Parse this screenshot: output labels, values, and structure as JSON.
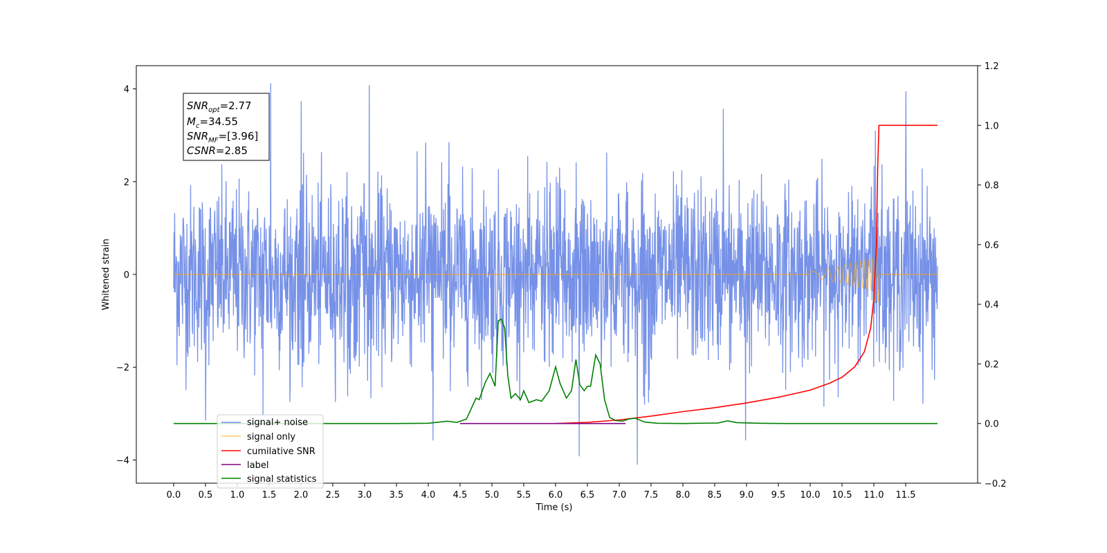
{
  "chart_data": {
    "type": "line",
    "xlabel": "Time (s)",
    "ylabel": "Whitened strain",
    "xlim": [
      -0.6,
      12.3
    ],
    "ylim_left": [
      -4.5,
      4.5
    ],
    "ylim_right": [
      -0.2,
      1.2
    ],
    "x_ticks": [
      "0.0",
      "0.5",
      "1.0",
      "1.5",
      "2.0",
      "2.5",
      "3.0",
      "3.5",
      "4.0",
      "4.5",
      "5.0",
      "5.5",
      "6.0",
      "6.5",
      "7.0",
      "7.5",
      "8.0",
      "8.5",
      "9.0",
      "9.5",
      "10.0",
      "10.5",
      "11.0",
      "11.5"
    ],
    "y_ticks_left": [
      "-4",
      "-2",
      "0",
      "2",
      "4"
    ],
    "y_ticks_right": [
      "-0.2",
      "0.0",
      "0.2",
      "0.4",
      "0.6",
      "0.8",
      "1.0",
      "1.2"
    ],
    "grid": false,
    "legend_position": "lower-left",
    "annotation": {
      "snr_opt": {
        "base": "SNR",
        "sub": "opt",
        "value": "=2.77"
      },
      "mc": {
        "base": "M",
        "sub": "c",
        "value": "=34.55"
      },
      "snr_mf": {
        "base": "SNR",
        "sub": "MF",
        "value": "=[3.96]"
      },
      "csnr": {
        "base": "CSNR",
        "value": "=2.85"
      }
    },
    "series": [
      {
        "name": "signal+ noise",
        "axis": "left",
        "color": "#6f8be6",
        "description_noise_envelope": [
          -2.6,
          2.6
        ],
        "outliers": [
          [
            1.52,
            4.12
          ],
          [
            3.07,
            4.08
          ],
          [
            2.0,
            3.73
          ],
          [
            11.5,
            3.95
          ],
          [
            8.63,
            3.57
          ],
          [
            11.02,
            3.1
          ],
          [
            4.07,
            -3.58
          ],
          [
            6.37,
            -3.92
          ],
          [
            7.28,
            -4.1
          ],
          [
            8.98,
            -3.58
          ],
          [
            0.5,
            -3.15
          ],
          [
            1.4,
            -3.05
          ]
        ]
      },
      {
        "name": "signal only",
        "axis": "left",
        "color": "#ffa500",
        "points": [
          [
            0,
            0
          ],
          [
            10.0,
            0
          ],
          [
            10.5,
            0.05
          ],
          [
            11.0,
            0.4
          ],
          [
            11.07,
            -0.6
          ],
          [
            11.1,
            0
          ],
          [
            12.0,
            0
          ]
        ]
      },
      {
        "name": "cumilative SNR",
        "axis": "right",
        "color": "#ff0000",
        "points": [
          [
            6.0,
            0.0
          ],
          [
            6.5,
            0.004
          ],
          [
            7.0,
            0.012
          ],
          [
            7.5,
            0.025
          ],
          [
            8.0,
            0.04
          ],
          [
            8.5,
            0.053
          ],
          [
            9.0,
            0.069
          ],
          [
            9.5,
            0.088
          ],
          [
            10.0,
            0.112
          ],
          [
            10.3,
            0.135
          ],
          [
            10.5,
            0.155
          ],
          [
            10.7,
            0.19
          ],
          [
            10.85,
            0.24
          ],
          [
            10.95,
            0.32
          ],
          [
            11.0,
            0.42
          ],
          [
            11.04,
            0.6
          ],
          [
            11.06,
            0.85
          ],
          [
            11.08,
            1.0
          ],
          [
            12.0,
            1.0
          ]
        ]
      },
      {
        "name": "label",
        "axis": "right",
        "color": "#800080",
        "points": [
          [
            4.5,
            0.0
          ],
          [
            7.1,
            0.0
          ]
        ]
      },
      {
        "name": "signal statistics",
        "axis": "right",
        "color": "#008000",
        "points": [
          [
            0.0,
            0.0
          ],
          [
            3.5,
            0.0
          ],
          [
            4.0,
            0.001
          ],
          [
            4.3,
            0.008
          ],
          [
            4.45,
            0.004
          ],
          [
            4.6,
            0.015
          ],
          [
            4.75,
            0.085
          ],
          [
            4.8,
            0.08
          ],
          [
            4.9,
            0.14
          ],
          [
            4.97,
            0.168
          ],
          [
            5.05,
            0.125
          ],
          [
            5.1,
            0.345
          ],
          [
            5.15,
            0.35
          ],
          [
            5.2,
            0.32
          ],
          [
            5.25,
            0.16
          ],
          [
            5.3,
            0.085
          ],
          [
            5.37,
            0.1
          ],
          [
            5.45,
            0.08
          ],
          [
            5.5,
            0.11
          ],
          [
            5.58,
            0.07
          ],
          [
            5.7,
            0.08
          ],
          [
            5.78,
            0.075
          ],
          [
            5.9,
            0.11
          ],
          [
            6.0,
            0.19
          ],
          [
            6.07,
            0.135
          ],
          [
            6.17,
            0.085
          ],
          [
            6.25,
            0.11
          ],
          [
            6.32,
            0.215
          ],
          [
            6.38,
            0.13
          ],
          [
            6.45,
            0.11
          ],
          [
            6.5,
            0.125
          ],
          [
            6.55,
            0.125
          ],
          [
            6.63,
            0.23
          ],
          [
            6.7,
            0.2
          ],
          [
            6.77,
            0.08
          ],
          [
            6.85,
            0.02
          ],
          [
            6.95,
            0.01
          ],
          [
            7.05,
            0.008
          ],
          [
            7.15,
            0.015
          ],
          [
            7.25,
            0.018
          ],
          [
            7.4,
            0.005
          ],
          [
            7.6,
            0.001
          ],
          [
            8.0,
            0.0
          ],
          [
            8.55,
            0.002
          ],
          [
            8.7,
            0.009
          ],
          [
            8.85,
            0.003
          ],
          [
            9.2,
            0.001
          ],
          [
            9.6,
            0.0
          ],
          [
            12.0,
            0.0
          ]
        ]
      }
    ]
  }
}
